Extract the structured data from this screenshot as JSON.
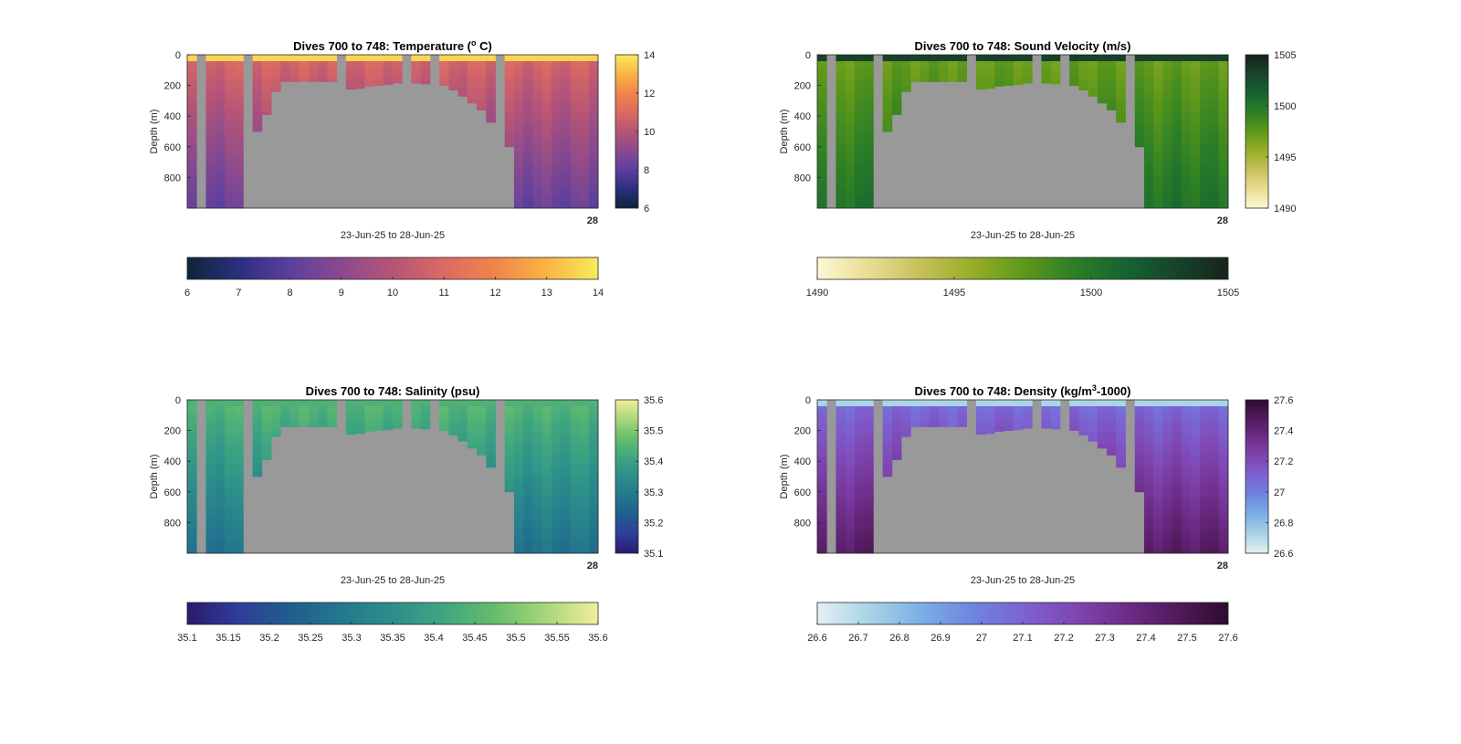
{
  "chart_data": [
    {
      "type": "heatmap",
      "title": "Dives 700 to 748: Temperature (",
      "title_sup": "o",
      "title_end": " C)",
      "xlabel": "23-Jun-25 to 28-Jun-25",
      "ylabel": "Depth (m)",
      "ylim": [
        0,
        1000
      ],
      "yticks": [
        "0",
        "200",
        "400",
        "600",
        "800"
      ],
      "x_corner_tick": "28",
      "colorbar_ticks": [
        "6",
        "8",
        "10",
        "12",
        "14"
      ],
      "hcolorbar_ticks": [
        "6",
        "7",
        "8",
        "9",
        "10",
        "11",
        "12",
        "13",
        "14"
      ],
      "clim": [
        6,
        14
      ],
      "colormap": [
        "#0d2538",
        "#2b2f80",
        "#5c3f9e",
        "#8a4a8e",
        "#b55477",
        "#db6a63",
        "#f2844a",
        "#f9b444",
        "#f7eb5b"
      ],
      "surface": 13.6,
      "top": 11.0,
      "bottom": 8.2,
      "dive_depths_m": [
        1000,
        0,
        1000,
        1000,
        1000,
        1000,
        0,
        500,
        390,
        240,
        175,
        175,
        175,
        175,
        175,
        175,
        0,
        225,
        220,
        205,
        200,
        195,
        185,
        0,
        185,
        190,
        0,
        200,
        230,
        270,
        315,
        360,
        440,
        0,
        600,
        1000,
        1000,
        1000,
        1000,
        1000,
        1000,
        1000,
        1000,
        1000
      ]
    },
    {
      "type": "heatmap",
      "title": "Dives 700 to 748: Sound Velocity (m/s)",
      "title_sup": "",
      "title_end": "",
      "xlabel": "23-Jun-25 to 28-Jun-25",
      "ylabel": "Depth (m)",
      "ylim": [
        0,
        1000
      ],
      "yticks": [
        "0",
        "200",
        "400",
        "600",
        "800"
      ],
      "x_corner_tick": "28",
      "colorbar_ticks": [
        "1490",
        "1495",
        "1500",
        "1505"
      ],
      "hcolorbar_ticks": [
        "1490",
        "1495",
        "1500",
        "1505"
      ],
      "clim": [
        1490,
        1505
      ],
      "colormap": [
        "#fdf8d5",
        "#e9dc94",
        "#c8c05a",
        "#99ae27",
        "#5f981a",
        "#2c7f26",
        "#156431",
        "#17432b",
        "#18221a"
      ],
      "surface": 1503.2,
      "top": 1497.0,
      "bottom": 1500.3,
      "dive_depths_m": [
        1000,
        0,
        1000,
        1000,
        1000,
        1000,
        0,
        500,
        390,
        240,
        175,
        175,
        175,
        175,
        175,
        175,
        0,
        225,
        220,
        205,
        200,
        195,
        185,
        0,
        185,
        190,
        0,
        200,
        230,
        270,
        315,
        360,
        440,
        0,
        600,
        1000,
        1000,
        1000,
        1000,
        1000,
        1000,
        1000,
        1000,
        1000
      ]
    },
    {
      "type": "heatmap",
      "title": "Dives 700 to 748: Salinity (psu)",
      "title_sup": "",
      "title_end": "",
      "xlabel": "23-Jun-25 to 28-Jun-25",
      "ylabel": "Depth (m)",
      "ylim": [
        0,
        1000
      ],
      "yticks": [
        "0",
        "200",
        "400",
        "600",
        "800"
      ],
      "x_corner_tick": "28",
      "colorbar_ticks": [
        "35.1",
        "35.2",
        "35.3",
        "35.4",
        "35.5",
        "35.6"
      ],
      "hcolorbar_ticks": [
        "35.1",
        "35.15",
        "35.2",
        "35.25",
        "35.3",
        "35.35",
        "35.4",
        "35.45",
        "35.5",
        "35.55",
        "35.6"
      ],
      "clim": [
        35.1,
        35.6
      ],
      "colormap": [
        "#2a1a6e",
        "#2f3d9a",
        "#1f5e8e",
        "#23788d",
        "#2c8f8a",
        "#3fa680",
        "#66bd6c",
        "#a8d77a",
        "#f3ee9d"
      ],
      "surface": 35.44,
      "top": 35.46,
      "bottom": 35.27,
      "dive_depths_m": [
        1000,
        0,
        1000,
        1000,
        1000,
        1000,
        0,
        500,
        390,
        240,
        175,
        175,
        175,
        175,
        175,
        175,
        0,
        225,
        220,
        205,
        200,
        195,
        185,
        0,
        185,
        190,
        0,
        200,
        230,
        270,
        315,
        360,
        440,
        0,
        600,
        1000,
        1000,
        1000,
        1000,
        1000,
        1000,
        1000,
        1000,
        1000
      ]
    },
    {
      "type": "heatmap",
      "title": "Dives 700 to 748: Density (kg/m",
      "title_sup": "3",
      "title_end": "-1000)",
      "xlabel": "23-Jun-25 to 28-Jun-25",
      "ylabel": "Depth (m)",
      "ylim": [
        0,
        1000
      ],
      "yticks": [
        "0",
        "200",
        "400",
        "600",
        "800"
      ],
      "x_corner_tick": "28",
      "colorbar_ticks": [
        "26.6",
        "26.8",
        "27",
        "27.2",
        "27.4",
        "27.6"
      ],
      "hcolorbar_ticks": [
        "26.6",
        "26.7",
        "26.8",
        "26.9",
        "27",
        "27.1",
        "27.2",
        "27.3",
        "27.4",
        "27.5",
        "27.6"
      ],
      "clim": [
        26.6,
        27.6
      ],
      "colormap": [
        "#e3f0f2",
        "#a9d4e6",
        "#7cb0e6",
        "#6e86e0",
        "#7c63d2",
        "#7f46b2",
        "#6e2d8a",
        "#521a5c",
        "#2e0c2e"
      ],
      "surface": 26.72,
      "top": 27.05,
      "bottom": 27.46,
      "dive_depths_m": [
        1000,
        0,
        1000,
        1000,
        1000,
        1000,
        0,
        500,
        390,
        240,
        175,
        175,
        175,
        175,
        175,
        175,
        0,
        225,
        220,
        205,
        200,
        195,
        185,
        0,
        185,
        190,
        0,
        200,
        230,
        270,
        315,
        360,
        440,
        0,
        600,
        1000,
        1000,
        1000,
        1000,
        1000,
        1000,
        1000,
        1000,
        1000
      ]
    }
  ]
}
